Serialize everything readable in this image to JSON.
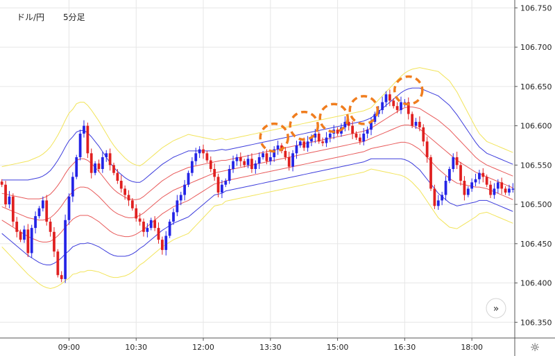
{
  "header": {
    "pair": "ドル/円",
    "timeframe": "5分足"
  },
  "colors": {
    "up": "#2424e6",
    "down": "#e02020",
    "sigma1": "#e85a5a",
    "sigma2": "#3b3bdc",
    "sigma3": "#f2e45a",
    "circle": "#f07d1e",
    "grid": "#e6e6e6",
    "axis": "#555555",
    "text": "#222222"
  },
  "controls": {
    "scroll_icon": "»",
    "settings_icon": "☼"
  },
  "chart_data": {
    "type": "candlestick",
    "instrument": "ドル/円",
    "timeframe": "5分足",
    "ylim": [
      106.33,
      106.76
    ],
    "y_ticks": [
      "106.750",
      "106.700",
      "106.650",
      "106.600",
      "106.550",
      "106.500",
      "106.450",
      "106.400",
      "106.350"
    ],
    "y_tick_values": [
      106.75,
      106.7,
      106.65,
      106.6,
      106.55,
      106.5,
      106.45,
      106.4,
      106.35
    ],
    "x_ticks": [
      "09:00",
      "10:30",
      "12:00",
      "13:30",
      "15:00",
      "16:30",
      "18:00"
    ],
    "x_tick_slots": [
      18,
      36,
      54,
      72,
      90,
      108,
      126
    ],
    "slot_count": 138,
    "closes": [
      106.525,
      106.5,
      106.51,
      106.478,
      106.465,
      106.455,
      106.468,
      106.438,
      106.47,
      106.485,
      106.495,
      106.505,
      106.478,
      106.465,
      106.44,
      106.41,
      106.405,
      106.48,
      106.51,
      106.535,
      106.56,
      106.59,
      106.6,
      106.565,
      106.54,
      106.552,
      106.545,
      106.56,
      106.565,
      106.55,
      106.54,
      106.53,
      106.52,
      106.512,
      106.505,
      106.495,
      106.482,
      106.478,
      106.465,
      106.47,
      106.48,
      106.47,
      106.455,
      106.442,
      106.46,
      106.478,
      106.49,
      106.505,
      106.512,
      106.525,
      106.54,
      106.555,
      106.565,
      106.57,
      106.565,
      106.556,
      106.545,
      106.535,
      106.515,
      106.525,
      106.53,
      106.545,
      106.555,
      106.56,
      106.555,
      106.55,
      106.558,
      106.545,
      106.552,
      106.56,
      106.565,
      106.555,
      106.56,
      106.57,
      106.575,
      106.568,
      106.56,
      106.548,
      106.565,
      106.575,
      106.58,
      106.572,
      106.58,
      106.585,
      106.59,
      106.58,
      106.578,
      106.585,
      106.59,
      106.595,
      106.59,
      106.598,
      106.605,
      106.6,
      106.59,
      106.585,
      106.58,
      106.59,
      106.595,
      106.605,
      106.615,
      106.62,
      106.63,
      106.64,
      106.632,
      106.625,
      106.62,
      106.63,
      106.63,
      106.615,
      106.6,
      106.605,
      106.598,
      106.58,
      106.56,
      106.52,
      106.498,
      106.505,
      106.512,
      106.53,
      106.545,
      106.56,
      106.55,
      106.53,
      106.512,
      106.52,
      106.528,
      106.532,
      106.54,
      106.535,
      106.525,
      106.512,
      106.52,
      106.528,
      106.52,
      106.515,
      106.52,
      106.52
    ],
    "bands": {
      "middle": [
        106.497,
        106.495,
        106.493,
        106.491,
        106.489,
        106.487,
        106.485,
        106.483,
        106.482,
        106.481,
        106.48,
        106.48,
        106.481,
        106.483,
        106.487,
        106.492,
        106.498,
        106.505,
        106.511,
        106.516,
        106.52,
        106.522,
        106.522,
        106.521,
        106.518,
        106.514,
        106.51,
        106.505,
        106.5,
        106.495,
        106.491,
        106.488,
        106.486,
        106.484,
        106.483,
        106.483,
        106.484,
        106.486,
        106.489,
        106.493,
        106.497,
        106.501,
        106.505,
        106.509,
        106.512,
        106.515,
        106.518,
        106.52,
        106.522,
        106.524,
        106.526,
        106.528,
        106.53,
        106.532,
        106.534,
        106.536,
        106.538,
        106.54,
        106.541,
        106.542,
        106.543,
        106.544,
        106.545,
        106.546,
        106.547,
        106.548,
        106.549,
        106.55,
        106.551,
        106.552,
        106.553,
        106.554,
        106.555,
        106.556,
        106.557,
        106.558,
        106.559,
        106.56,
        106.561,
        106.562,
        106.563,
        106.564,
        106.565,
        106.566,
        106.567,
        106.568,
        106.569,
        106.57,
        106.571,
        106.572,
        106.573,
        106.574,
        106.575,
        106.576,
        106.577,
        106.578,
        106.579,
        106.58,
        106.582,
        106.584,
        106.586,
        106.588,
        106.59,
        106.592,
        106.594,
        106.596,
        106.598,
        106.6,
        106.601,
        106.601,
        106.6,
        106.598,
        106.596,
        106.592,
        106.588,
        106.584,
        106.58,
        106.576,
        106.572,
        106.568,
        106.564,
        106.56,
        106.556,
        106.553,
        106.55,
        106.547,
        106.544,
        106.541,
        106.539,
        106.537,
        106.535,
        106.533,
        106.531,
        106.529,
        106.527,
        106.525,
        106.523,
        106.521
      ],
      "sigma": [
        0.017,
        0.018,
        0.019,
        0.02,
        0.021,
        0.022,
        0.023,
        0.024,
        0.025,
        0.026,
        0.027,
        0.028,
        0.029,
        0.03,
        0.031,
        0.032,
        0.033,
        0.034,
        0.035,
        0.035,
        0.036,
        0.036,
        0.036,
        0.035,
        0.034,
        0.033,
        0.032,
        0.031,
        0.03,
        0.029,
        0.028,
        0.027,
        0.026,
        0.025,
        0.024,
        0.023,
        0.022,
        0.021,
        0.021,
        0.021,
        0.021,
        0.021,
        0.021,
        0.021,
        0.021,
        0.021,
        0.021,
        0.021,
        0.021,
        0.021,
        0.021,
        0.02,
        0.019,
        0.018,
        0.017,
        0.016,
        0.015,
        0.014,
        0.014,
        0.014,
        0.013,
        0.013,
        0.013,
        0.013,
        0.013,
        0.013,
        0.013,
        0.013,
        0.013,
        0.013,
        0.013,
        0.013,
        0.013,
        0.013,
        0.013,
        0.013,
        0.013,
        0.013,
        0.013,
        0.013,
        0.013,
        0.013,
        0.013,
        0.013,
        0.013,
        0.013,
        0.013,
        0.013,
        0.013,
        0.013,
        0.013,
        0.013,
        0.013,
        0.013,
        0.013,
        0.013,
        0.013,
        0.013,
        0.013,
        0.013,
        0.014,
        0.015,
        0.016,
        0.017,
        0.018,
        0.019,
        0.02,
        0.021,
        0.022,
        0.023,
        0.024,
        0.025,
        0.026,
        0.027,
        0.028,
        0.029,
        0.03,
        0.031,
        0.031,
        0.031,
        0.031,
        0.03,
        0.029,
        0.027,
        0.025,
        0.023,
        0.021,
        0.019,
        0.017,
        0.016,
        0.015,
        0.015,
        0.015,
        0.015,
        0.015,
        0.015,
        0.015,
        0.015,
        0.015,
        0.015
      ],
      "multipliers": [
        1,
        2,
        3
      ]
    },
    "highlight_circles": [
      {
        "slot": 73,
        "price": 106.585
      },
      {
        "slot": 81,
        "price": 106.6
      },
      {
        "slot": 89,
        "price": 106.61
      },
      {
        "slot": 97,
        "price": 106.62
      },
      {
        "slot": 109,
        "price": 106.645
      }
    ]
  }
}
